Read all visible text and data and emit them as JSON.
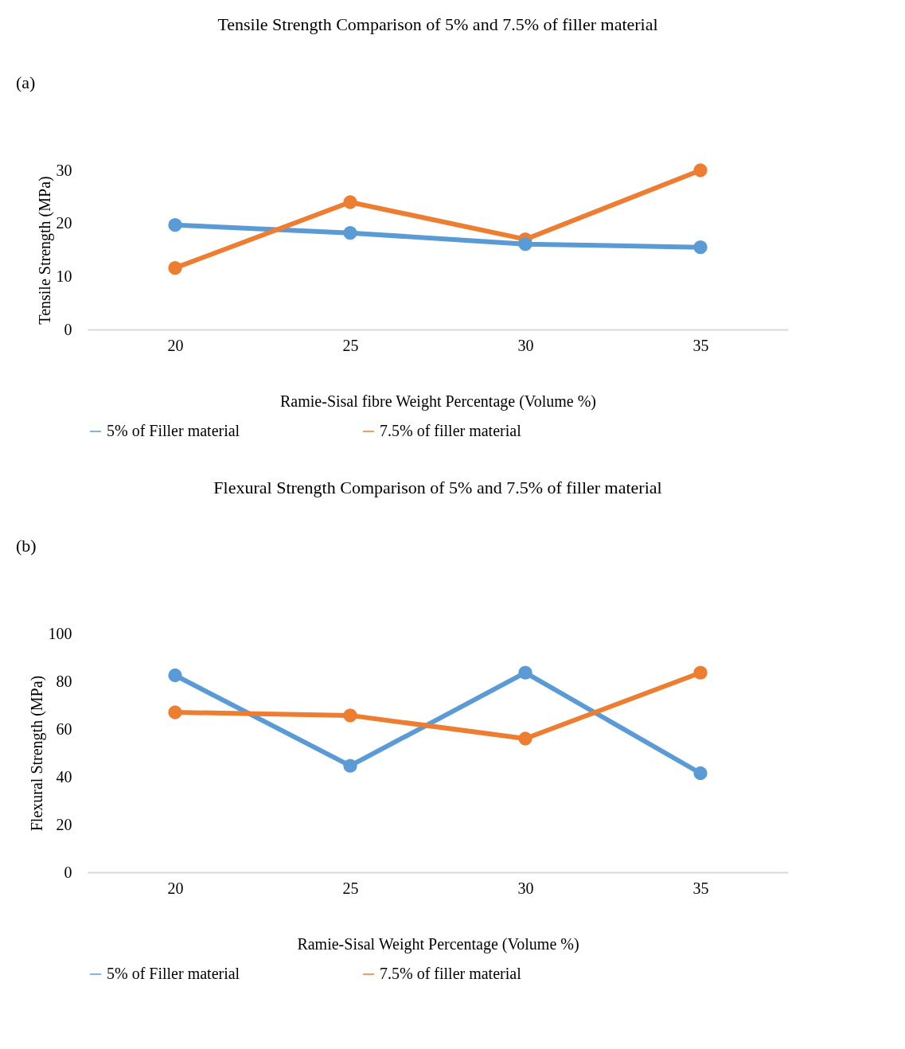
{
  "chart_data": [
    {
      "type": "line",
      "title": "Tensile Strength Comparison of 5% and 7.5% of filler material",
      "xlabel": "Ramie-Sisal fibre Weight Percentage (Volume %)",
      "ylabel": "Tensile Strength (MPa)",
      "annotations": [
        "(a)"
      ],
      "categories": [
        "20",
        "25",
        "30",
        "35"
      ],
      "series": [
        {
          "name": "5% of Filler material",
          "color": "#5b9bd5",
          "values": [
            19.7,
            18.2,
            16.1,
            15.5
          ]
        },
        {
          "name": "7.5% of filler material",
          "color": "#ed7d31",
          "values": [
            11.6,
            24,
            17,
            30
          ]
        }
      ],
      "ylim": [
        0,
        30
      ],
      "yticks": [
        0,
        10,
        20,
        30
      ],
      "grid": false,
      "legend": "bottom",
      "marker": "circle",
      "line_style": "solid"
    },
    {
      "type": "line",
      "title": "Flexural Strength Comparison of 5% and 7.5% of filler material",
      "xlabel": "Ramie-Sisal Weight Percentage (Volume %)",
      "ylabel": "Flexural Strength (MPa)",
      "annotations": [
        "(b)"
      ],
      "categories": [
        "20",
        "25",
        "30",
        "35"
      ],
      "series": [
        {
          "name": "5% of Filler material",
          "color": "#5b9bd5",
          "values": [
            82.5,
            44.6,
            83.6,
            41.5
          ]
        },
        {
          "name": "7.5% of filler material",
          "color": "#ed7d31",
          "values": [
            67,
            65.7,
            56,
            83.6
          ]
        }
      ],
      "ylim": [
        0,
        100
      ],
      "yticks": [
        0,
        20,
        40,
        60,
        80,
        100
      ],
      "grid": false,
      "legend": "bottom",
      "marker": "circle",
      "line_style": "solid"
    }
  ]
}
